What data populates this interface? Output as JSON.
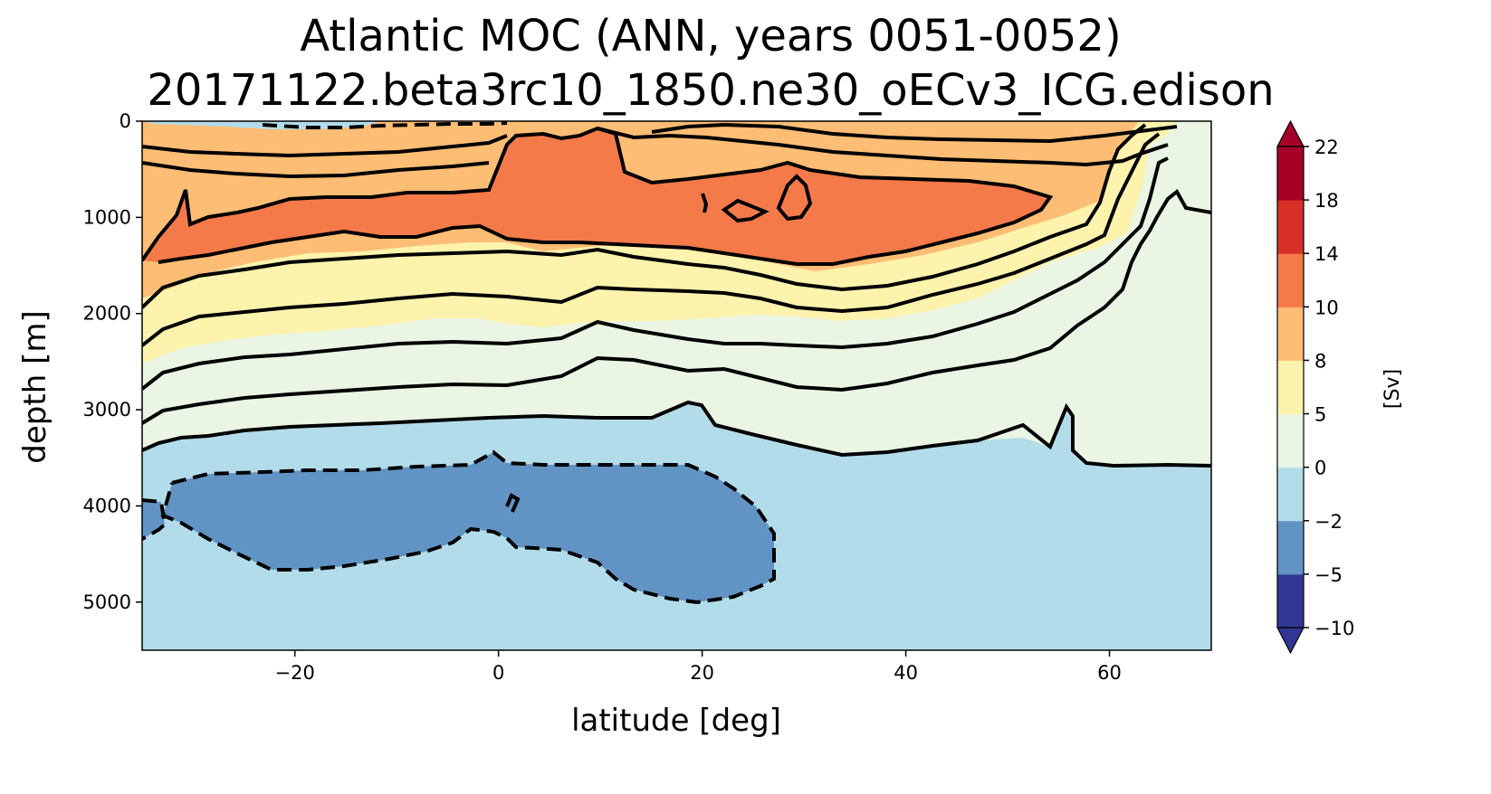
{
  "chart_data": {
    "type": "heatmap",
    "subtype": "filled-contour",
    "title": "Atlantic MOC (ANN, years 0051-0052)",
    "subtitle": "20171122.beta3rc10_1850.ne30_oECv3_ICG.edison",
    "xlabel": "latitude [deg]",
    "ylabel": "depth [m]",
    "xlim": [
      -35,
      70
    ],
    "ylim": [
      5500,
      0
    ],
    "xticks": [
      -20,
      0,
      20,
      40,
      60
    ],
    "xtick_labels": [
      "−20",
      "0",
      "20",
      "40",
      "60"
    ],
    "yticks": [
      0,
      1000,
      2000,
      3000,
      4000,
      5000
    ],
    "ytick_labels": [
      "0",
      "1000",
      "2000",
      "3000",
      "4000",
      "5000"
    ],
    "colorbar": {
      "label": "[Sv]",
      "levels": [
        -10,
        -5,
        -2,
        0,
        5,
        8,
        10,
        14,
        18,
        22
      ],
      "level_labels": [
        "−10",
        "−5",
        "−2",
        "0",
        "5",
        "8",
        "10",
        "14",
        "18",
        "22"
      ],
      "colors": [
        "#313695",
        "#6194c4",
        "#b3dcea",
        "#eaf5e3",
        "#fef3ad",
        "#fdbd74",
        "#f57a49",
        "#d73027",
        "#a50026"
      ],
      "extend": "both"
    },
    "max_streamfunction_sv": 12,
    "min_streamfunction_sv": -3,
    "contour_levels_solid": [
      0,
      2,
      4,
      6,
      8,
      10
    ],
    "contour_levels_dashed": [
      -2
    ],
    "upper_cell_core": {
      "lat_range": [
        -35,
        55
      ],
      "depth_range_m": [
        500,
        1500
      ],
      "value_sv": 11
    },
    "abyssal_cell_core": {
      "lat_range": [
        -35,
        27
      ],
      "depth_range_m": [
        3600,
        5000
      ],
      "value_sv": -3
    }
  }
}
